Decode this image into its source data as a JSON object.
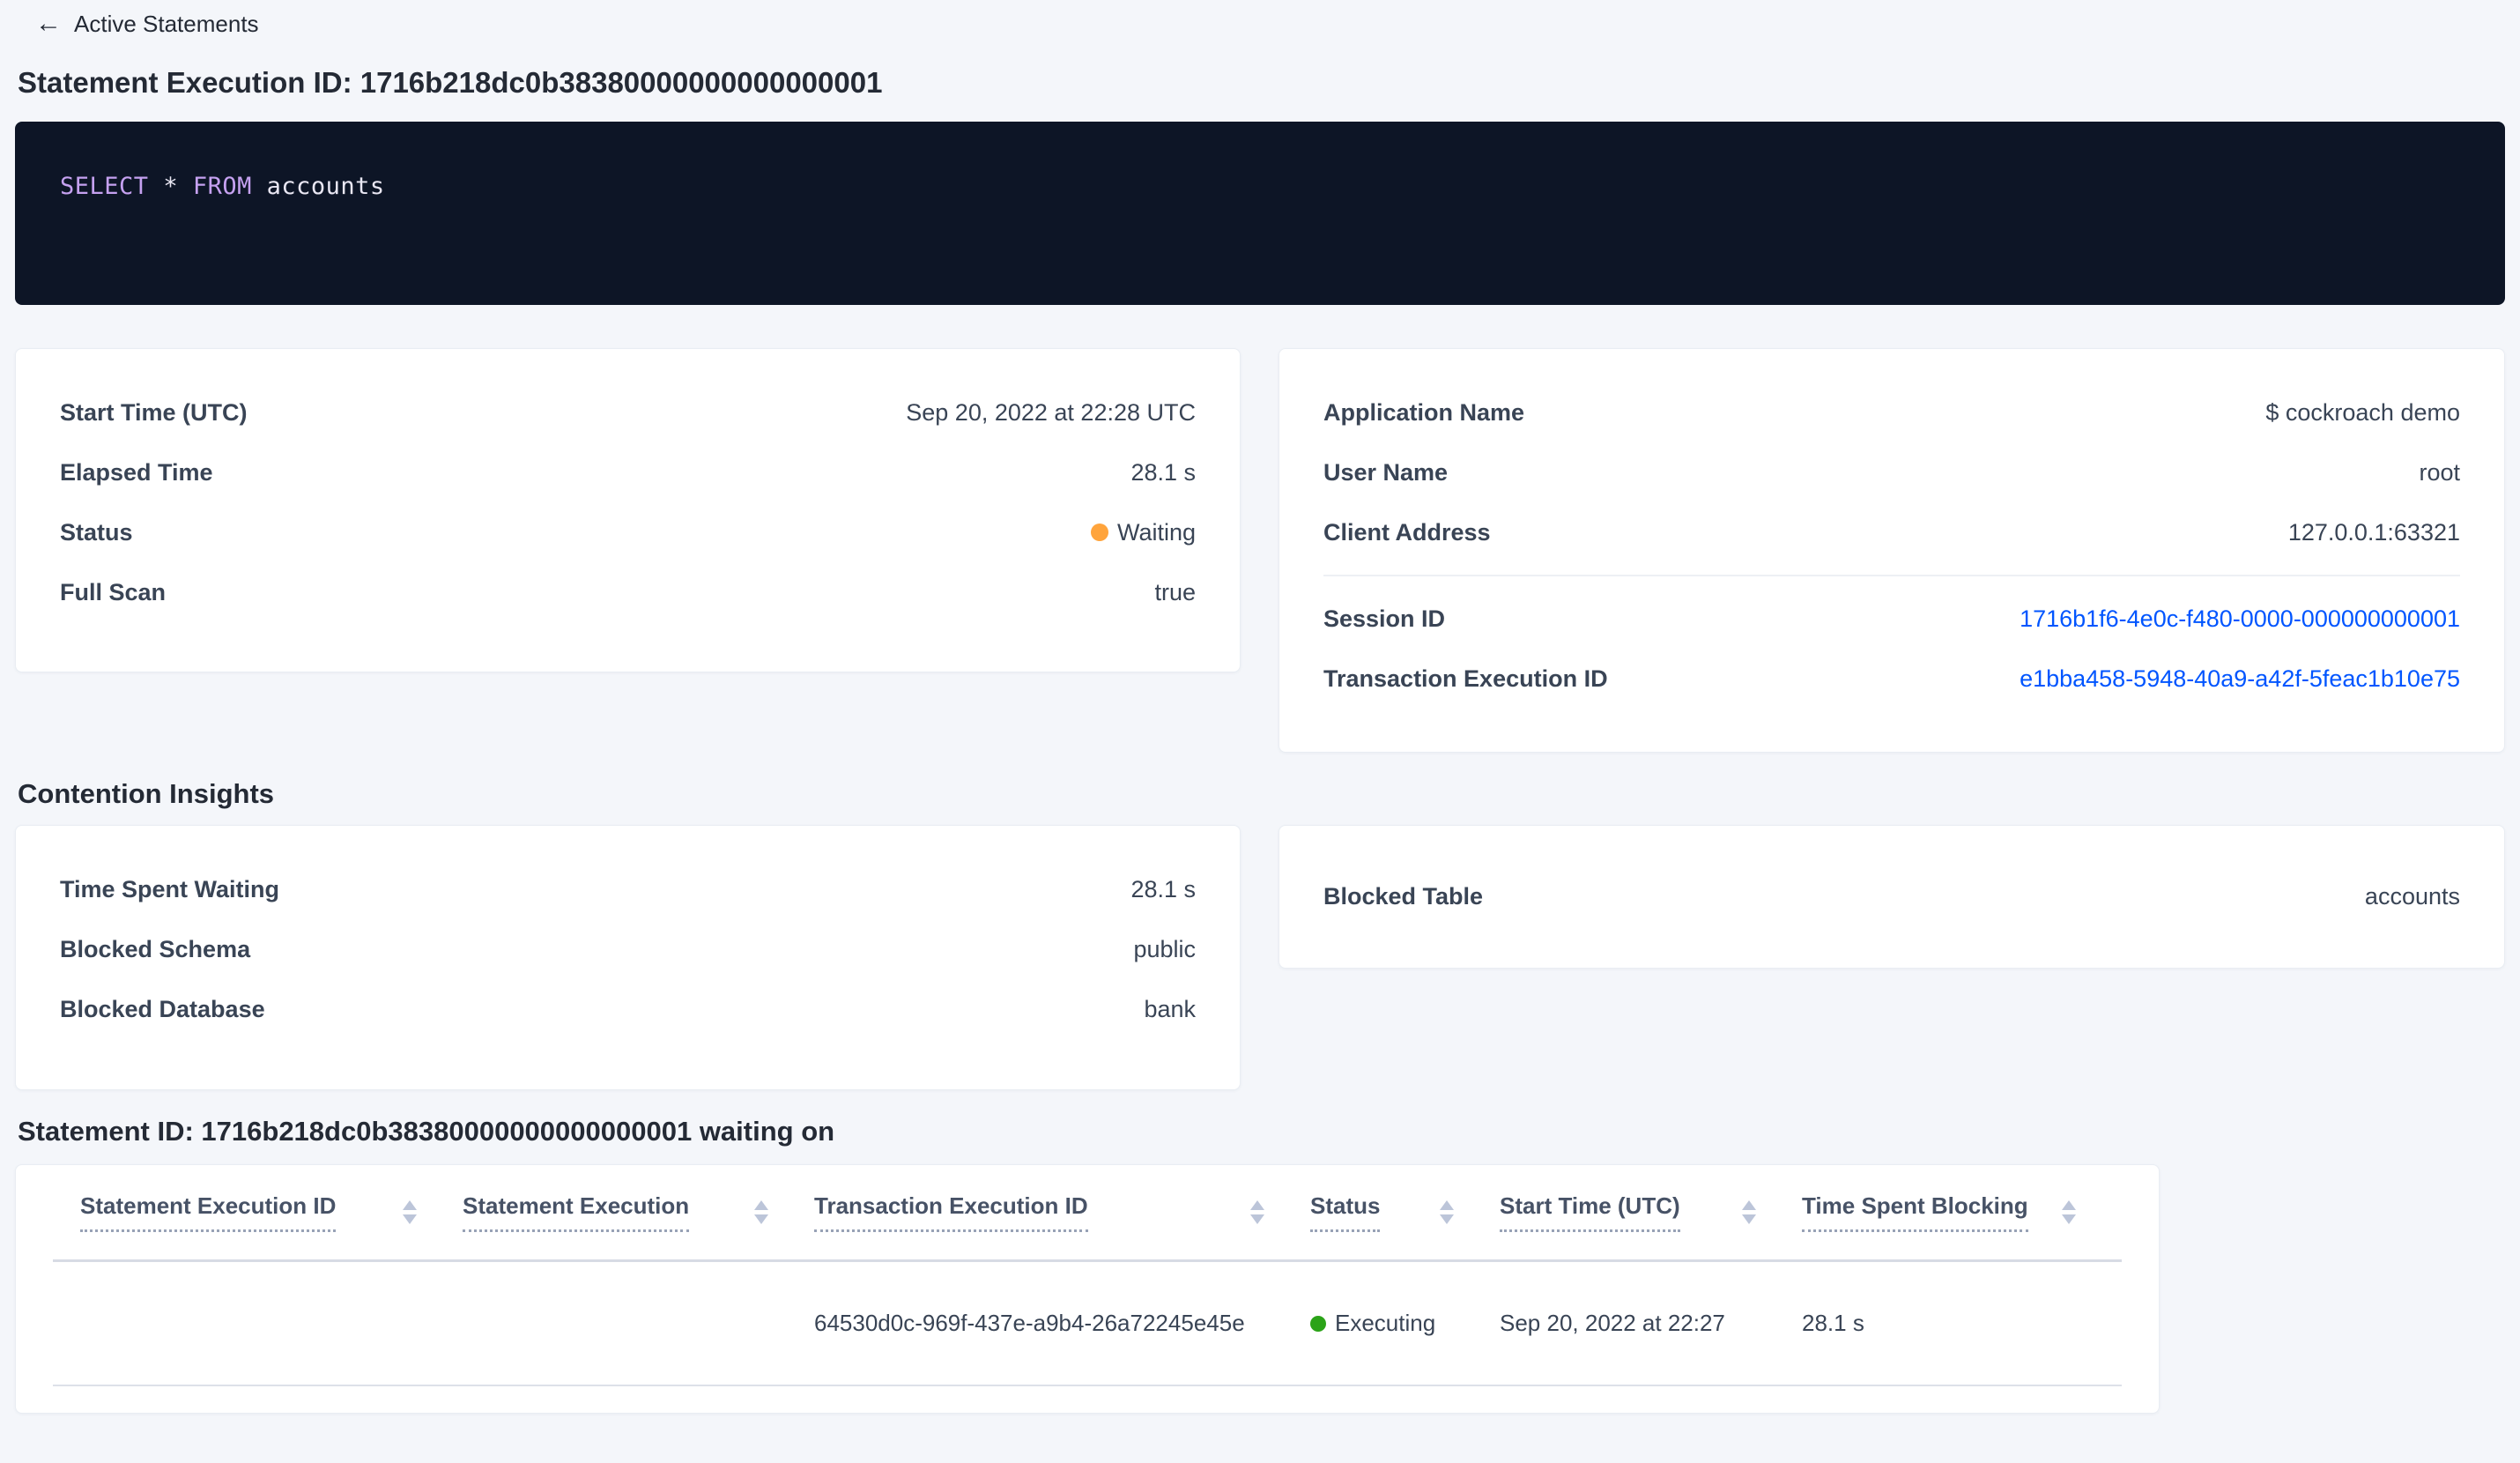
{
  "colors": {
    "accent_link_blue": "#0055FF",
    "status_waiting_orange": "#FFA43C",
    "status_executing_green": "#2BA318",
    "sql_keyword_purple": "#C5A1F0",
    "sql_box_background": "#0D1526"
  },
  "header": {
    "back_icon": "←",
    "back_label": "Active Statements",
    "title": "Statement Execution ID: 1716b218dc0b38380000000000000001"
  },
  "sql": {
    "kw1": "SELECT",
    "star": "*",
    "kw2": "FROM",
    "ident": "accounts"
  },
  "overview_left": {
    "rows": [
      {
        "label": "Start Time (UTC)",
        "value": "Sep 20, 2022 at 22:28 UTC"
      },
      {
        "label": "Elapsed Time",
        "value": "28.1 s"
      },
      {
        "label": "Status",
        "value": "Waiting"
      },
      {
        "label": "Full Scan",
        "value": "true"
      }
    ]
  },
  "overview_right": {
    "rows": [
      {
        "label": "Application Name",
        "value": "$ cockroach demo"
      },
      {
        "label": "User Name",
        "value": "root"
      },
      {
        "label": "Client Address",
        "value": "127.0.0.1:63321"
      }
    ],
    "links": [
      {
        "label": "Session ID",
        "value": "1716b1f6-4e0c-f480-0000-000000000001"
      },
      {
        "label": "Transaction Execution ID",
        "value": "e1bba458-5948-40a9-a42f-5feac1b10e75"
      }
    ]
  },
  "contention": {
    "heading": "Contention Insights",
    "left_rows": [
      {
        "label": "Time Spent Waiting",
        "value": "28.1 s"
      },
      {
        "label": "Blocked Schema",
        "value": "public"
      },
      {
        "label": "Blocked Database",
        "value": "bank"
      }
    ],
    "right_rows": [
      {
        "label": "Blocked Table",
        "value": "accounts"
      }
    ]
  },
  "waiting": {
    "heading": "Statement ID: 1716b218dc0b38380000000000000001 waiting on",
    "table": {
      "columns": [
        "Statement Execution ID",
        "Statement Execution",
        "Transaction Execution ID",
        "Status",
        "Start Time (UTC)",
        "Time Spent Blocking"
      ],
      "row": {
        "statement_execution_id": "",
        "statement_execution": "",
        "transaction_execution_id": "64530d0c-969f-437e-a9b4-26a72245e45e",
        "status": "Executing",
        "start_time": "Sep 20, 2022 at 22:27",
        "time_spent_blocking": "28.1 s"
      }
    }
  }
}
